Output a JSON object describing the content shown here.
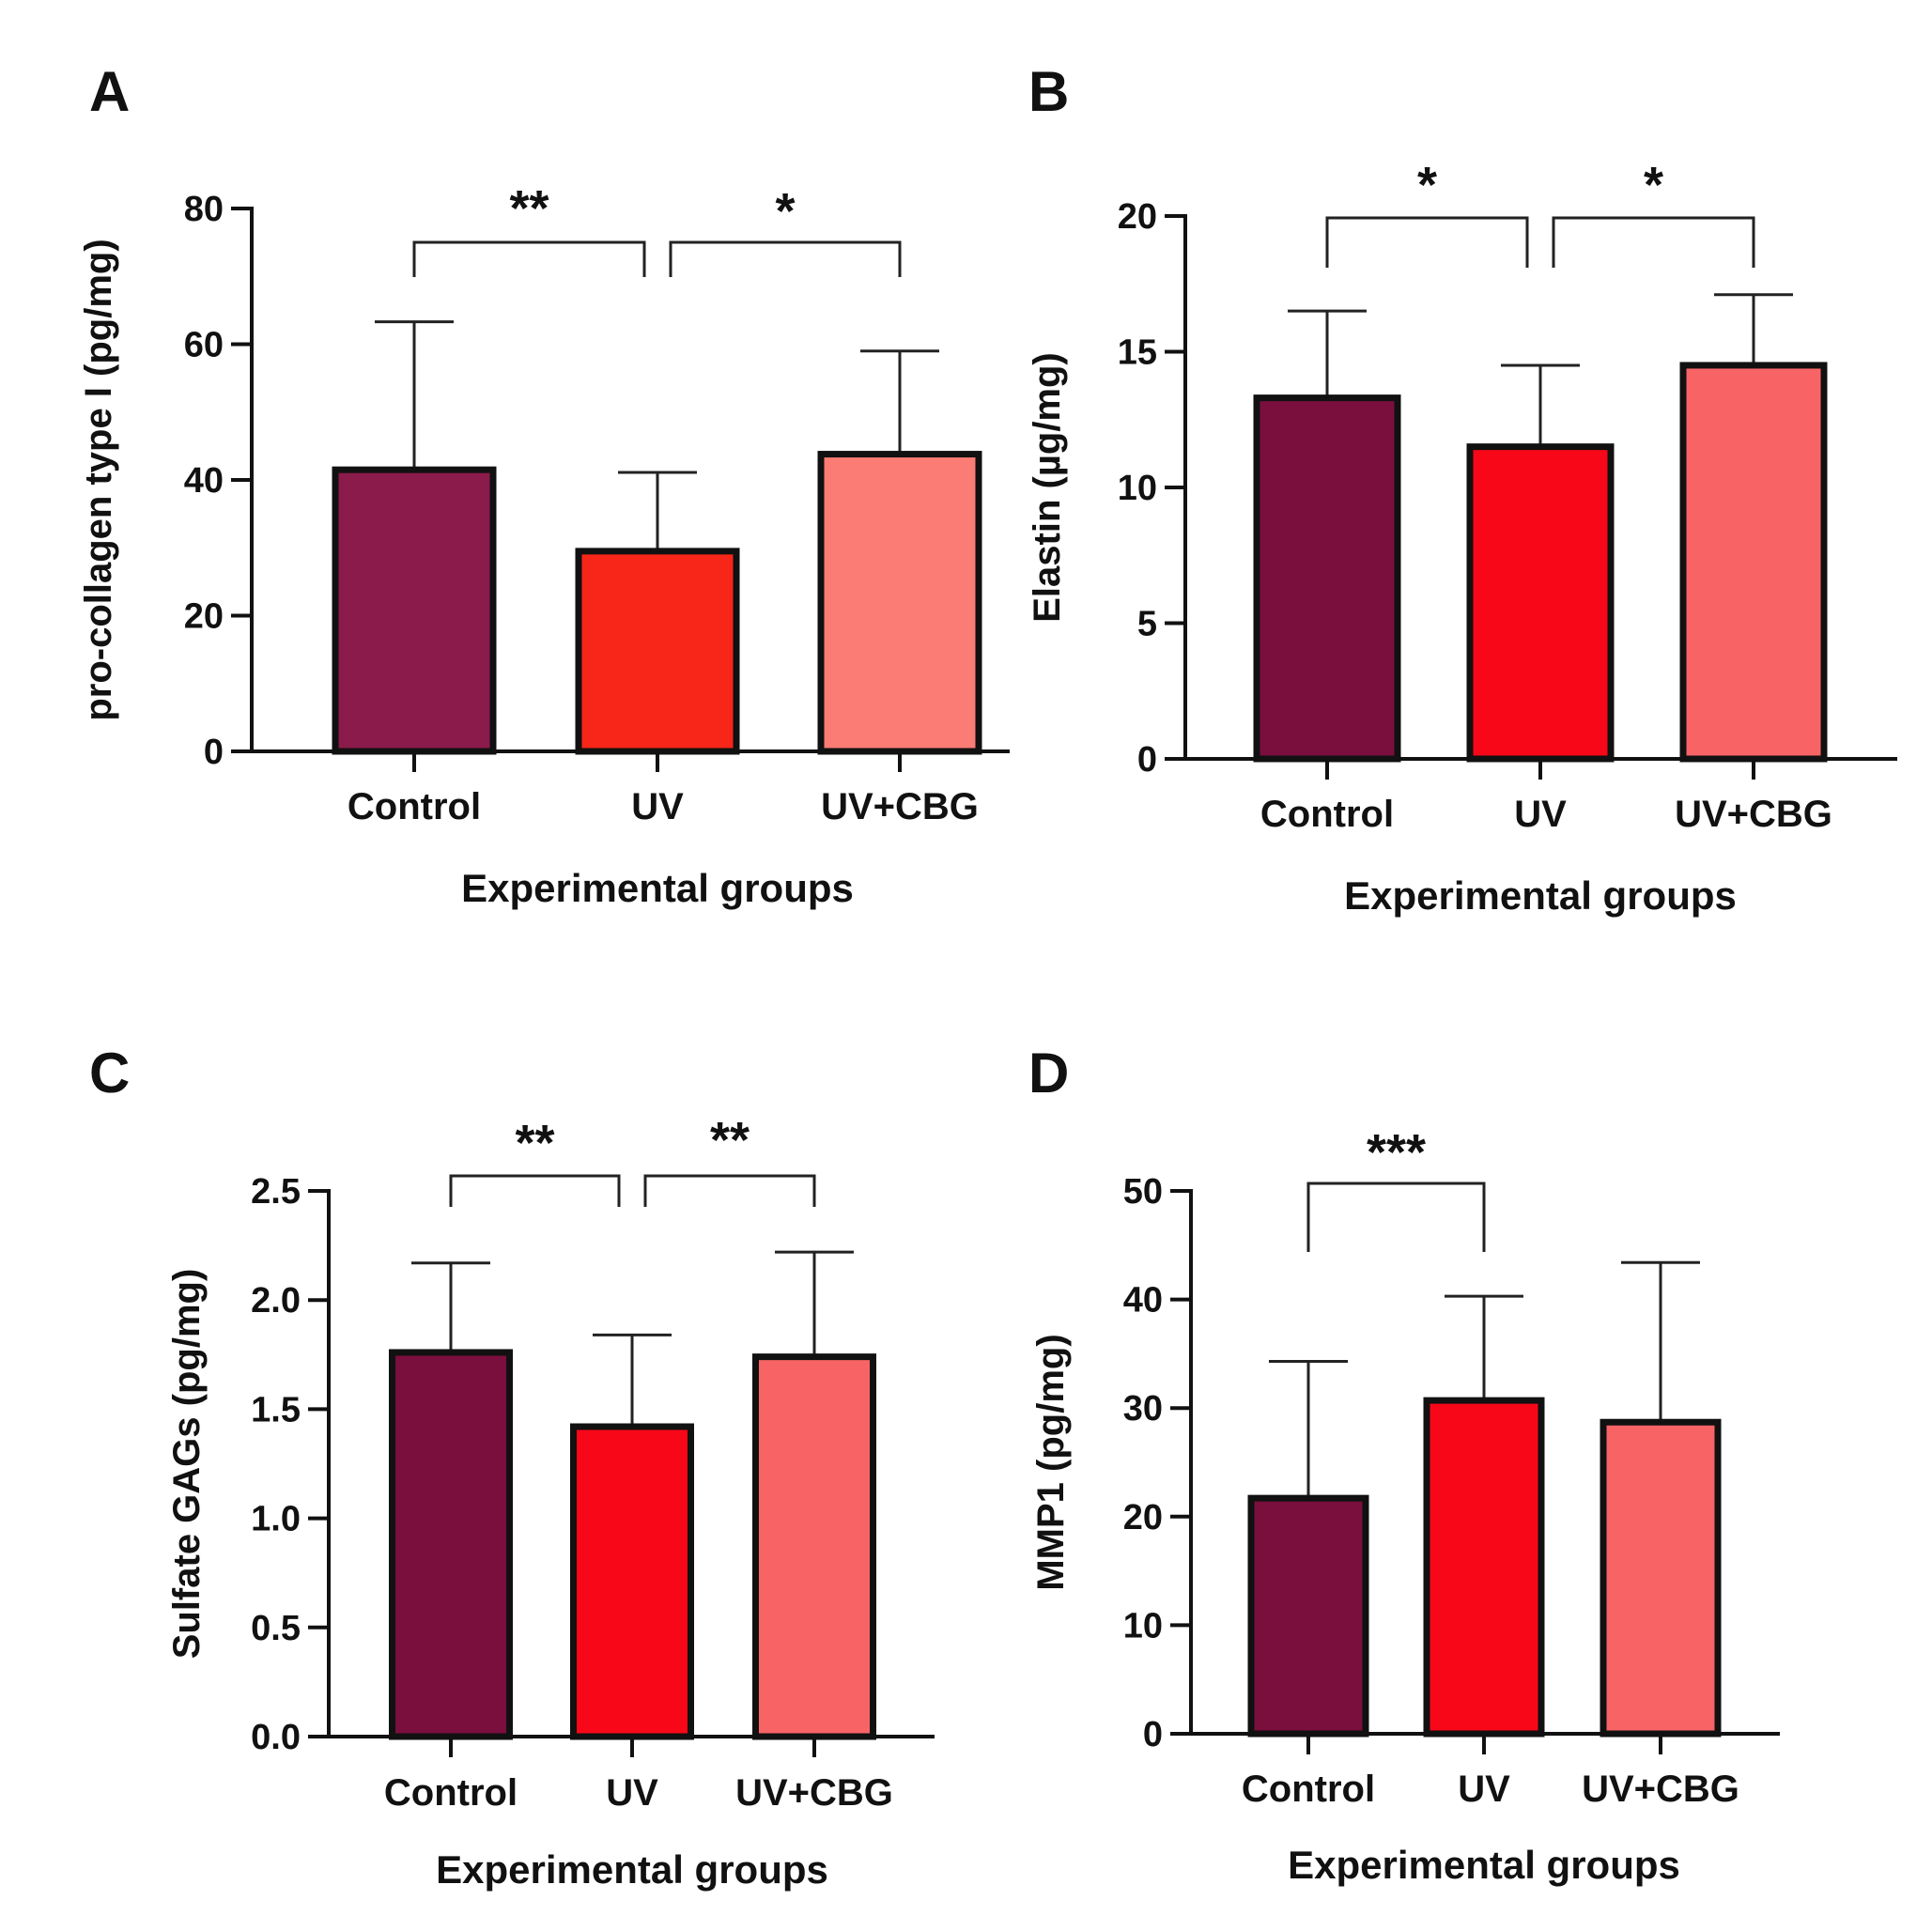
{
  "chart_data": [
    {
      "panel": "A",
      "type": "bar",
      "categories": [
        "Control",
        "UV",
        "UV+CBG"
      ],
      "values": [
        41.5,
        29.5,
        43.8
      ],
      "errors": [
        21.8,
        11.6,
        15.2
      ],
      "colors": [
        "#8b1b4a",
        "#f82618",
        "#fa7c74"
      ],
      "xlabel": "Experimental groups",
      "ylabel": "pro-collagen type I (pg/mg)",
      "ylim": [
        0,
        80
      ],
      "yticks": [
        "0",
        "20",
        "40",
        "60",
        "80"
      ],
      "significance": [
        {
          "from": 0,
          "to": 1,
          "label": "**"
        },
        {
          "from": 1,
          "to": 2,
          "label": "*"
        }
      ]
    },
    {
      "panel": "B",
      "type": "bar",
      "categories": [
        "Control",
        "UV",
        "UV+CBG"
      ],
      "values": [
        13.3,
        11.5,
        14.5
      ],
      "errors": [
        3.2,
        3.0,
        2.6
      ],
      "colors": [
        "#7a0e3d",
        "#f80718",
        "#f86466"
      ],
      "xlabel": "Experimental groups",
      "ylabel": "Elastin (µg/mg)",
      "ylim": [
        0,
        20
      ],
      "yticks": [
        "0",
        "5",
        "10",
        "15",
        "20"
      ],
      "significance": [
        {
          "from": 0,
          "to": 1,
          "label": "*"
        },
        {
          "from": 1,
          "to": 2,
          "label": "*"
        }
      ]
    },
    {
      "panel": "C",
      "type": "bar",
      "categories": [
        "Control",
        "UV",
        "UV+CBG"
      ],
      "values": [
        1.76,
        1.42,
        1.74
      ],
      "errors": [
        0.41,
        0.42,
        0.48
      ],
      "colors": [
        "#7a0e3d",
        "#f80718",
        "#f86466"
      ],
      "xlabel": "Experimental groups",
      "ylabel": "Sulfate GAGs (pg/mg)",
      "ylim": [
        0,
        2.5
      ],
      "yticks": [
        "0.0",
        "0.5",
        "1.0",
        "1.5",
        "2.0",
        "2.5"
      ],
      "significance": [
        {
          "from": 0,
          "to": 1,
          "label": "**"
        },
        {
          "from": 1,
          "to": 2,
          "label": "**"
        }
      ]
    },
    {
      "panel": "D",
      "type": "bar",
      "categories": [
        "Control",
        "UV",
        "UV+CBG"
      ],
      "values": [
        21.7,
        30.7,
        28.7
      ],
      "errors": [
        12.6,
        9.6,
        14.7
      ],
      "colors": [
        "#7a0e3d",
        "#f80718",
        "#f86466"
      ],
      "xlabel": "Experimental groups",
      "ylabel": "MMP1 (pg/mg)",
      "ylim": [
        0,
        50
      ],
      "yticks": [
        "0",
        "10",
        "20",
        "30",
        "40",
        "50"
      ],
      "significance": [
        {
          "from": 0,
          "to": 1,
          "label": "***"
        }
      ]
    }
  ]
}
